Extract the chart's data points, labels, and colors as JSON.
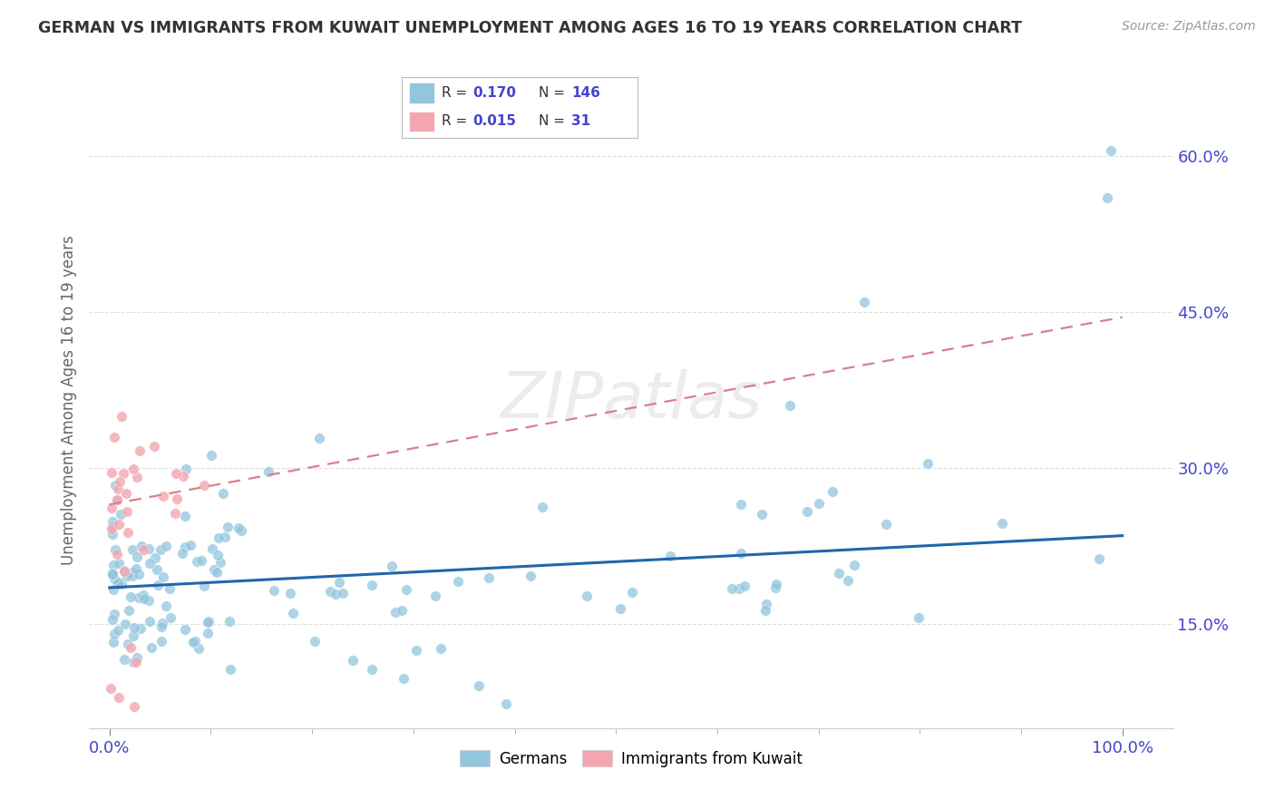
{
  "title": "GERMAN VS IMMIGRANTS FROM KUWAIT UNEMPLOYMENT AMONG AGES 16 TO 19 YEARS CORRELATION CHART",
  "source": "Source: ZipAtlas.com",
  "ylabel": "Unemployment Among Ages 16 to 19 years",
  "background_color": "#ffffff",
  "watermark": "ZIPatlas",
  "german_r": "0.170",
  "german_n": "146",
  "kuwait_r": "0.015",
  "kuwait_n": "31",
  "german_color": "#92c5de",
  "kuwait_color": "#f4a6b0",
  "german_line_color": "#2166ac",
  "kuwait_line_color": "#d9808a",
  "legend_label_color": "#4444cc",
  "ytick_vals": [
    0.15,
    0.3,
    0.45,
    0.6
  ],
  "ytick_labels": [
    "15.0%",
    "30.0%",
    "45.0%",
    "60.0%"
  ],
  "xtick_labels": [
    "0.0%",
    "100.0%"
  ],
  "german_trend_y0": 0.185,
  "german_trend_y1": 0.235,
  "kuwait_trend_y0": 0.265,
  "kuwait_trend_y1": 0.445,
  "xlim": [
    -0.02,
    1.05
  ],
  "ylim": [
    0.05,
    0.68
  ]
}
